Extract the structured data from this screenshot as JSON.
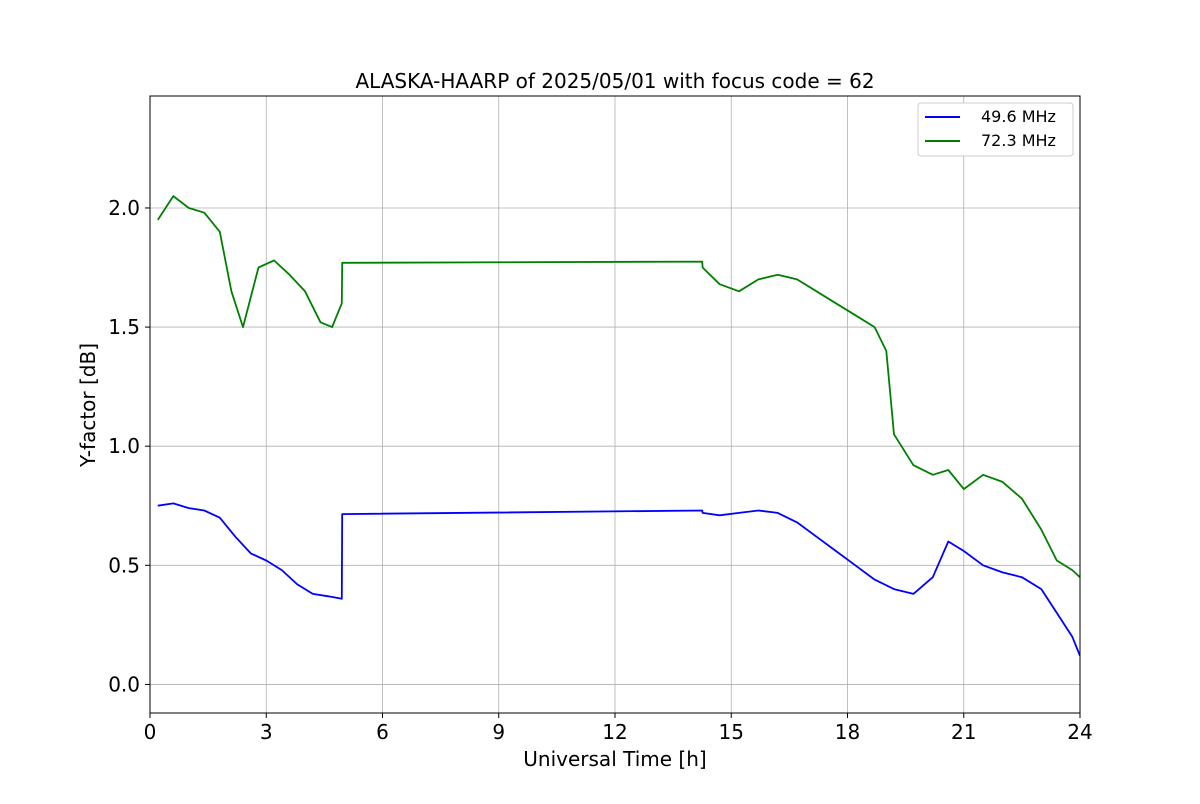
{
  "chart_data": {
    "type": "line",
    "title": "ALASKA-HAARP of 2025/05/01 with focus code = 62",
    "xlabel": "Universal Time [h]",
    "ylabel": "Y-factor [dB]",
    "xlim": [
      0,
      24
    ],
    "ylim": [
      -0.12,
      2.47
    ],
    "xticks": [
      0,
      3,
      6,
      9,
      12,
      15,
      18,
      21,
      24
    ],
    "xtick_labels": [
      "0",
      "3",
      "6",
      "9",
      "12",
      "15",
      "18",
      "21",
      "24"
    ],
    "yticks": [
      0.0,
      0.5,
      1.0,
      1.5,
      2.0
    ],
    "ytick_labels": [
      "0.0",
      "0.5",
      "1.0",
      "1.5",
      "2.0"
    ],
    "grid": true,
    "legend_position": "top-right",
    "series": [
      {
        "name": "49.6 MHz",
        "color": "#0000ff",
        "points": [
          [
            0.2,
            0.75
          ],
          [
            0.6,
            0.76
          ],
          [
            1.0,
            0.74
          ],
          [
            1.4,
            0.73
          ],
          [
            1.8,
            0.7
          ],
          [
            2.2,
            0.62
          ],
          [
            2.6,
            0.55
          ],
          [
            3.0,
            0.52
          ],
          [
            3.4,
            0.48
          ],
          [
            3.8,
            0.42
          ],
          [
            4.2,
            0.38
          ],
          [
            4.6,
            0.37
          ],
          [
            4.95,
            0.36
          ],
          [
            4.96,
            0.715
          ],
          [
            14.25,
            0.73
          ],
          [
            14.26,
            0.72
          ],
          [
            14.7,
            0.71
          ],
          [
            15.2,
            0.72
          ],
          [
            15.7,
            0.73
          ],
          [
            16.2,
            0.72
          ],
          [
            16.7,
            0.68
          ],
          [
            17.2,
            0.62
          ],
          [
            17.7,
            0.56
          ],
          [
            18.2,
            0.5
          ],
          [
            18.7,
            0.44
          ],
          [
            19.2,
            0.4
          ],
          [
            19.7,
            0.38
          ],
          [
            20.2,
            0.45
          ],
          [
            20.6,
            0.6
          ],
          [
            21.0,
            0.56
          ],
          [
            21.5,
            0.5
          ],
          [
            22.0,
            0.47
          ],
          [
            22.5,
            0.45
          ],
          [
            23.0,
            0.4
          ],
          [
            23.4,
            0.3
          ],
          [
            23.8,
            0.2
          ],
          [
            24.0,
            0.12
          ]
        ]
      },
      {
        "name": "72.3 MHz",
        "color": "#008000",
        "points": [
          [
            0.2,
            1.95
          ],
          [
            0.6,
            2.05
          ],
          [
            1.0,
            2.0
          ],
          [
            1.4,
            1.98
          ],
          [
            1.8,
            1.9
          ],
          [
            2.1,
            1.65
          ],
          [
            2.4,
            1.5
          ],
          [
            2.8,
            1.75
          ],
          [
            3.2,
            1.78
          ],
          [
            3.6,
            1.72
          ],
          [
            4.0,
            1.65
          ],
          [
            4.4,
            1.52
          ],
          [
            4.7,
            1.5
          ],
          [
            4.95,
            1.6
          ],
          [
            4.96,
            1.77
          ],
          [
            14.25,
            1.775
          ],
          [
            14.26,
            1.75
          ],
          [
            14.7,
            1.68
          ],
          [
            15.2,
            1.65
          ],
          [
            15.7,
            1.7
          ],
          [
            16.2,
            1.72
          ],
          [
            16.7,
            1.7
          ],
          [
            17.2,
            1.65
          ],
          [
            17.7,
            1.6
          ],
          [
            18.2,
            1.55
          ],
          [
            18.7,
            1.5
          ],
          [
            19.0,
            1.4
          ],
          [
            19.2,
            1.05
          ],
          [
            19.7,
            0.92
          ],
          [
            20.2,
            0.88
          ],
          [
            20.6,
            0.9
          ],
          [
            21.0,
            0.82
          ],
          [
            21.5,
            0.88
          ],
          [
            22.0,
            0.85
          ],
          [
            22.5,
            0.78
          ],
          [
            23.0,
            0.65
          ],
          [
            23.4,
            0.52
          ],
          [
            23.8,
            0.48
          ],
          [
            24.0,
            0.45
          ]
        ]
      }
    ]
  }
}
